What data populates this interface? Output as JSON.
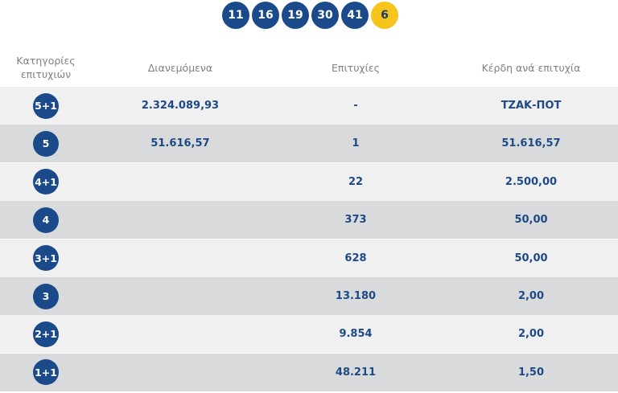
{
  "draw": {
    "numbers": [
      "11",
      "16",
      "19",
      "30",
      "41"
    ],
    "joker": "6"
  },
  "table": {
    "headers": [
      "Κατηγορίες επιτυχιών",
      "Διανεμόμενα",
      "Επιτυχίες",
      "Κέρδη ανά επιτυχία"
    ],
    "rows": [
      {
        "category": "5+1",
        "distributed": "2.324.089,93",
        "winners": "-",
        "prize": "ΤΖΑΚ-ΠΟΤ"
      },
      {
        "category": "5",
        "distributed": "51.616,57",
        "winners": "1",
        "prize": "51.616,57"
      },
      {
        "category": "4+1",
        "winners": "22",
        "prize": "2.500,00"
      },
      {
        "category": "4",
        "winners": "373",
        "prize": "50,00"
      },
      {
        "category": "3+1",
        "winners": "628",
        "prize": "50,00"
      },
      {
        "category": "3",
        "winners": "13.180",
        "prize": "2,00"
      },
      {
        "category": "2+1",
        "winners": "9.854",
        "prize": "2,00"
      },
      {
        "category": "1+1",
        "winners": "48.211",
        "prize": "1,50"
      }
    ]
  }
}
